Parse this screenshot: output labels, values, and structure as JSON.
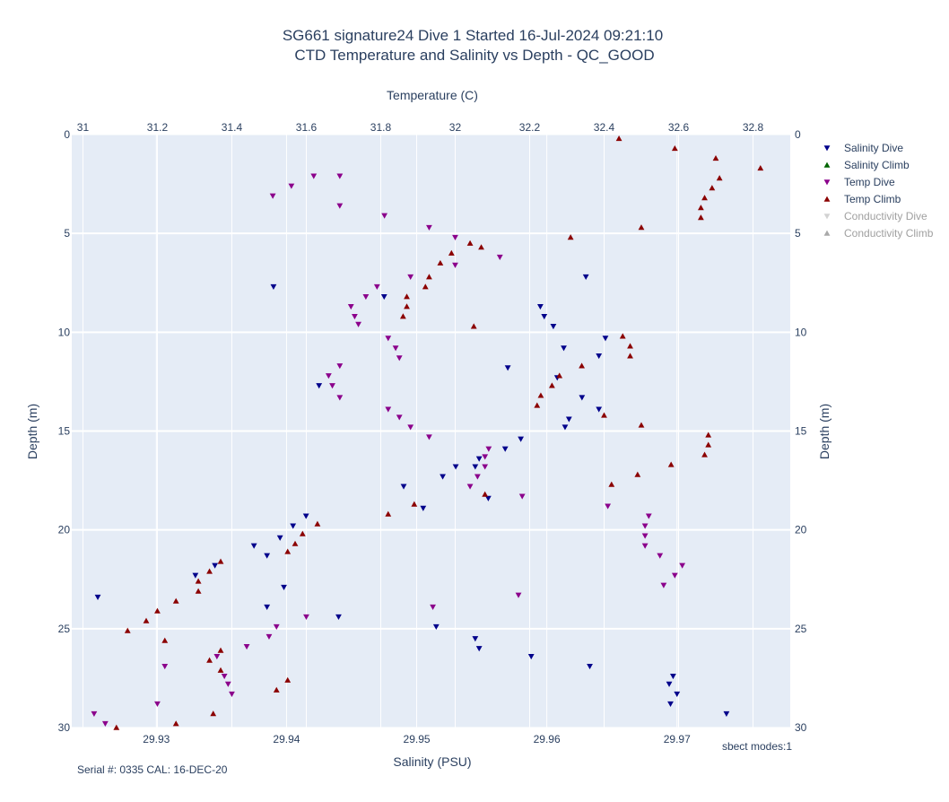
{
  "chart_data": {
    "type": "scatter",
    "title": "SG661 signature24 Dive 1 Started 16-Jul-2024 09:21:10",
    "subtitle": "CTD Temperature and Salinity vs Depth - QC_GOOD",
    "x_top": {
      "label": "Temperature (C)",
      "range": [
        30.97,
        32.9
      ],
      "ticks": [
        31,
        31.2,
        31.4,
        31.6,
        31.8,
        32,
        32.2,
        32.4,
        32.6,
        32.8
      ]
    },
    "x_bottom": {
      "label": "Salinity (PSU)",
      "range": [
        29.9235,
        29.9787
      ],
      "ticks": [
        29.93,
        29.94,
        29.95,
        29.96,
        29.97
      ]
    },
    "y": {
      "label": "Depth (m)",
      "range": [
        0,
        30
      ],
      "reversed": true,
      "ticks": [
        0,
        5,
        10,
        15,
        20,
        25,
        30
      ]
    },
    "grid": true,
    "legend_position": "right",
    "footnote_left": "Serial #: 0335  CAL: 16-DEC-20",
    "footnote_right": "sbect modes:1",
    "series": [
      {
        "name": "Salinity Dive",
        "axis": "salinity",
        "color": "#00008b",
        "marker": "triangle-down",
        "points": [
          [
            29.9738,
            29.3
          ],
          [
            29.9555,
            18.4
          ],
          [
            29.9548,
            16.4
          ],
          [
            29.9633,
            26.9
          ],
          [
            29.9588,
            26.4
          ],
          [
            29.9608,
            12.3
          ],
          [
            29.9598,
            9.2
          ],
          [
            29.9613,
            10.8
          ],
          [
            29.9645,
            10.3
          ],
          [
            29.9627,
            13.3
          ],
          [
            29.9617,
            14.4
          ],
          [
            29.9614,
            14.8
          ],
          [
            29.958,
            15.4
          ],
          [
            29.9568,
            15.9
          ],
          [
            29.9545,
            16.8
          ],
          [
            29.952,
            17.3
          ],
          [
            29.949,
            17.8
          ],
          [
            29.9415,
            19.3
          ],
          [
            29.9405,
            19.8
          ],
          [
            29.9395,
            20.4
          ],
          [
            29.9385,
            21.3
          ],
          [
            29.9375,
            20.8
          ],
          [
            29.9345,
            21.8
          ],
          [
            29.933,
            22.3
          ],
          [
            29.9255,
            23.4
          ],
          [
            29.9398,
            22.9
          ],
          [
            29.9385,
            23.9
          ],
          [
            29.944,
            24.4
          ],
          [
            29.9515,
            24.9
          ],
          [
            29.9545,
            25.5
          ],
          [
            29.9548,
            26.0
          ],
          [
            29.9697,
            27.4
          ],
          [
            29.9694,
            27.8
          ],
          [
            29.97,
            28.3
          ],
          [
            29.9695,
            28.8
          ],
          [
            29.9505,
            18.9
          ],
          [
            29.9595,
            8.7
          ],
          [
            29.9425,
            12.7
          ],
          [
            29.9475,
            8.2
          ],
          [
            29.939,
            7.7
          ],
          [
            29.9605,
            9.7
          ],
          [
            29.964,
            11.2
          ],
          [
            29.963,
            7.2
          ],
          [
            29.953,
            16.8
          ],
          [
            29.964,
            13.9
          ],
          [
            29.957,
            11.8
          ]
        ]
      },
      {
        "name": "Salinity Climb",
        "axis": "salinity",
        "color": "#006400",
        "marker": "triangle-up",
        "points": []
      },
      {
        "name": "Temp Dive",
        "axis": "temperature",
        "color": "#8b008b",
        "marker": "triangle-down",
        "points": [
          [
            31.51,
            3.1
          ],
          [
            31.56,
            2.6
          ],
          [
            31.62,
            2.1
          ],
          [
            31.69,
            2.1
          ],
          [
            31.69,
            3.6
          ],
          [
            31.81,
            4.1
          ],
          [
            31.93,
            4.7
          ],
          [
            32.0,
            5.2
          ],
          [
            32.12,
            6.2
          ],
          [
            32.0,
            6.6
          ],
          [
            31.88,
            7.2
          ],
          [
            31.79,
            7.7
          ],
          [
            31.76,
            8.2
          ],
          [
            31.72,
            8.7
          ],
          [
            31.73,
            9.2
          ],
          [
            31.74,
            9.6
          ],
          [
            31.82,
            10.3
          ],
          [
            31.84,
            10.8
          ],
          [
            31.85,
            11.3
          ],
          [
            31.69,
            11.7
          ],
          [
            31.66,
            12.2
          ],
          [
            31.67,
            12.7
          ],
          [
            31.69,
            13.3
          ],
          [
            31.82,
            13.9
          ],
          [
            31.85,
            14.3
          ],
          [
            31.88,
            14.8
          ],
          [
            31.93,
            15.3
          ],
          [
            32.09,
            15.9
          ],
          [
            32.08,
            16.3
          ],
          [
            32.08,
            16.8
          ],
          [
            32.06,
            17.3
          ],
          [
            32.04,
            17.8
          ],
          [
            32.18,
            18.3
          ],
          [
            32.41,
            18.8
          ],
          [
            32.52,
            19.3
          ],
          [
            32.51,
            19.8
          ],
          [
            32.51,
            20.3
          ],
          [
            32.51,
            20.8
          ],
          [
            32.55,
            21.3
          ],
          [
            32.61,
            21.8
          ],
          [
            32.59,
            22.3
          ],
          [
            32.56,
            22.8
          ],
          [
            32.17,
            23.3
          ],
          [
            31.94,
            23.9
          ],
          [
            31.6,
            24.4
          ],
          [
            31.52,
            24.9
          ],
          [
            31.5,
            25.4
          ],
          [
            31.44,
            25.9
          ],
          [
            31.36,
            26.4
          ],
          [
            31.22,
            26.9
          ],
          [
            31.38,
            27.4
          ],
          [
            31.39,
            27.8
          ],
          [
            31.4,
            28.3
          ],
          [
            31.2,
            28.8
          ],
          [
            31.03,
            29.3
          ],
          [
            31.06,
            29.8
          ]
        ]
      },
      {
        "name": "Temp Climb",
        "axis": "temperature",
        "color": "#8b0000",
        "marker": "triangle-up",
        "points": [
          [
            32.44,
            0.2
          ],
          [
            32.59,
            0.7
          ],
          [
            32.7,
            1.2
          ],
          [
            32.82,
            1.7
          ],
          [
            32.71,
            2.2
          ],
          [
            32.69,
            2.7
          ],
          [
            32.67,
            3.2
          ],
          [
            32.66,
            3.7
          ],
          [
            32.66,
            4.2
          ],
          [
            32.5,
            4.7
          ],
          [
            32.31,
            5.2
          ],
          [
            32.07,
            5.7
          ],
          [
            32.04,
            5.5
          ],
          [
            31.99,
            6.0
          ],
          [
            31.96,
            6.5
          ],
          [
            31.93,
            7.2
          ],
          [
            31.92,
            7.7
          ],
          [
            31.87,
            8.2
          ],
          [
            31.87,
            8.7
          ],
          [
            31.86,
            9.2
          ],
          [
            32.05,
            9.7
          ],
          [
            32.45,
            10.2
          ],
          [
            32.47,
            10.7
          ],
          [
            32.47,
            11.2
          ],
          [
            32.34,
            11.7
          ],
          [
            32.28,
            12.2
          ],
          [
            32.26,
            12.7
          ],
          [
            32.23,
            13.2
          ],
          [
            32.22,
            13.7
          ],
          [
            32.4,
            14.2
          ],
          [
            32.5,
            14.7
          ],
          [
            32.68,
            15.2
          ],
          [
            32.68,
            15.7
          ],
          [
            32.67,
            16.2
          ],
          [
            32.58,
            16.7
          ],
          [
            32.49,
            17.2
          ],
          [
            32.42,
            17.7
          ],
          [
            32.08,
            18.2
          ],
          [
            31.89,
            18.7
          ],
          [
            31.82,
            19.2
          ],
          [
            31.63,
            19.7
          ],
          [
            31.59,
            20.2
          ],
          [
            31.57,
            20.7
          ],
          [
            31.55,
            21.1
          ],
          [
            31.37,
            21.6
          ],
          [
            31.34,
            22.1
          ],
          [
            31.31,
            22.6
          ],
          [
            31.31,
            23.1
          ],
          [
            31.25,
            23.6
          ],
          [
            31.2,
            24.1
          ],
          [
            31.17,
            24.6
          ],
          [
            31.12,
            25.1
          ],
          [
            31.22,
            25.6
          ],
          [
            31.37,
            26.1
          ],
          [
            31.34,
            26.6
          ],
          [
            31.37,
            27.1
          ],
          [
            31.55,
            27.6
          ],
          [
            31.52,
            28.1
          ],
          [
            31.35,
            29.3
          ],
          [
            31.25,
            29.8
          ],
          [
            31.09,
            30.0
          ]
        ]
      },
      {
        "name": "Conductivity Dive",
        "axis": "none",
        "color": "#d3d3d3",
        "marker": "triangle-down",
        "points": []
      },
      {
        "name": "Conductivity Climb",
        "axis": "none",
        "color": "#a9a9a9",
        "marker": "triangle-up",
        "points": []
      }
    ]
  }
}
